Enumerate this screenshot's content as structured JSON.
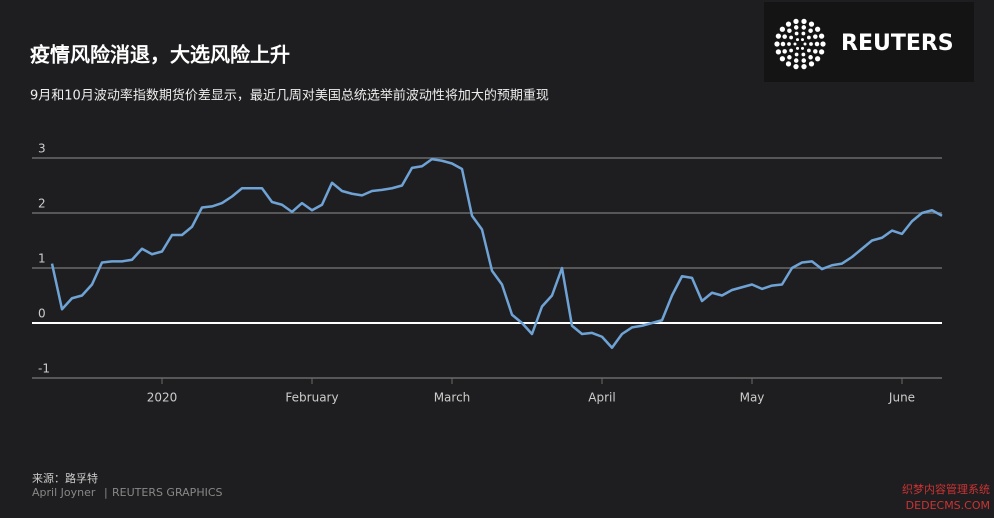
{
  "chart_data": {
    "type": "line",
    "title": "疫情风险消退，大选风险上升",
    "subtitle": "9月和10月波动率指数期货价差显示，最近几周对美国总统选举前波动性将加大的预期重现",
    "logo": "REUTERS",
    "source": "来源：路孚特",
    "credit": [
      "April Joyner",
      "REUTERS GRAPHICS"
    ],
    "watermark": [
      "织梦内容管理系统",
      "DEDECMS.COM"
    ],
    "categories": [
      null,
      null,
      null,
      null,
      null,
      null,
      null,
      null,
      null,
      null,
      null,
      "2020",
      null,
      null,
      null,
      null,
      null,
      null,
      null,
      null,
      null,
      null,
      null,
      null,
      null,
      null,
      "February",
      null,
      null,
      null,
      null,
      null,
      null,
      null,
      null,
      null,
      null,
      null,
      null,
      null,
      "March",
      null,
      null,
      null,
      null,
      null,
      null,
      null,
      null,
      null,
      null,
      null,
      null,
      null,
      null,
      "April",
      null,
      null,
      null,
      null,
      null,
      null,
      null,
      null,
      null,
      null,
      null,
      null,
      null,
      null,
      "May",
      null,
      null,
      null,
      null,
      null,
      null,
      null,
      null,
      null,
      null,
      null,
      null,
      null,
      null,
      "June",
      null,
      null,
      null,
      null
    ],
    "series": [
      {
        "color": "#6fa3d6",
        "values": [
          1.08,
          0.25,
          0.45,
          0.5,
          0.7,
          1.1,
          1.12,
          1.12,
          1.15,
          1.35,
          1.25,
          1.3,
          1.6,
          1.6,
          1.75,
          2.1,
          2.12,
          2.18,
          2.3,
          2.45,
          2.45,
          2.45,
          2.2,
          2.15,
          2.02,
          2.18,
          2.05,
          2.15,
          2.55,
          2.4,
          2.35,
          2.32,
          2.4,
          2.42,
          2.45,
          2.5,
          2.82,
          2.85,
          2.98,
          2.95,
          2.9,
          2.8,
          1.95,
          1.7,
          0.95,
          0.7,
          0.15,
          0.0,
          -0.2,
          0.3,
          0.5,
          1.0,
          -0.05,
          -0.2,
          -0.18,
          -0.25,
          -0.45,
          -0.2,
          -0.08,
          -0.05,
          0.0,
          0.05,
          0.5,
          0.85,
          0.82,
          0.4,
          0.55,
          0.5,
          0.6,
          0.65,
          0.7,
          0.62,
          0.68,
          0.7,
          1.0,
          1.1,
          1.12,
          0.98,
          1.05,
          1.08,
          1.2,
          1.35,
          1.5,
          1.55,
          1.68,
          1.62,
          1.85,
          2.0,
          2.05,
          1.95
        ]
      }
    ],
    "ylim": [
      -1,
      3
    ],
    "yticks": [
      -1,
      0,
      1,
      2,
      3
    ],
    "grid": true
  }
}
